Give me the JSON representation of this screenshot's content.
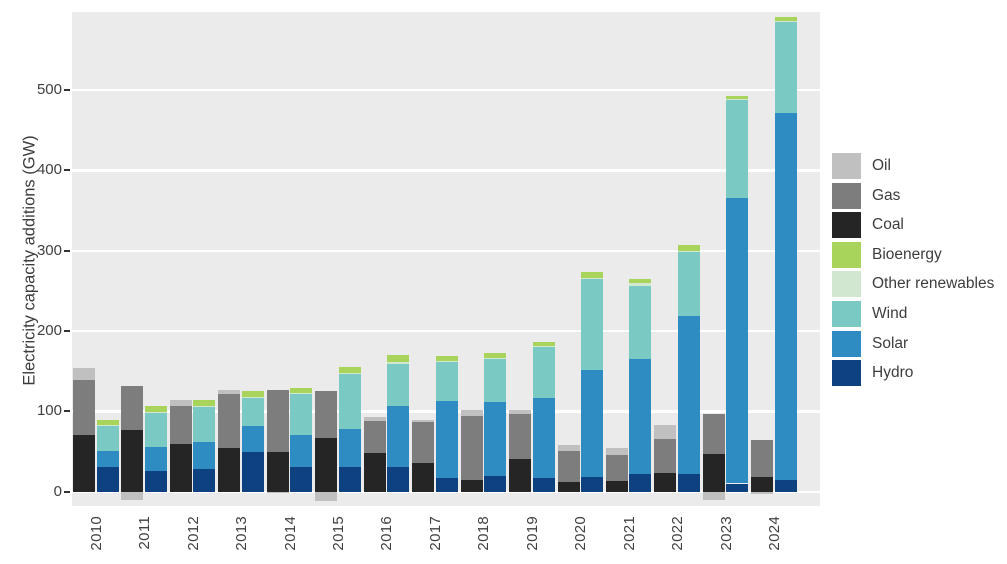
{
  "chart_data": {
    "type": "bar",
    "variant": "grouped-stacked",
    "title": "",
    "ylabel": "Electricity capacity additions (GW)",
    "xlabel": "",
    "categories": [
      "2010",
      "2011",
      "2012",
      "2013",
      "2014",
      "2015",
      "2016",
      "2017",
      "2018",
      "2019",
      "2020",
      "2021",
      "2022",
      "2023",
      "2024"
    ],
    "yticks": [
      0,
      100,
      200,
      300,
      400,
      500
    ],
    "ylim": [
      -18,
      597
    ],
    "grid": true,
    "plot_bg": "#ebebeb",
    "grid_color": "#ffffff",
    "text_color": "#404040",
    "legend_position": "right",
    "legend": [
      "Oil",
      "Gas",
      "Coal",
      "Bioenergy",
      "Other renewables",
      "Wind",
      "Solar",
      "Hydro"
    ],
    "series": [
      {
        "name": "Coal",
        "group": "fossil",
        "color": "#252525",
        "values": [
          70,
          76,
          59,
          54,
          49,
          67,
          48,
          35,
          14,
          41,
          12,
          13,
          23,
          47,
          18
        ]
      },
      {
        "name": "Gas",
        "group": "fossil",
        "color": "#7d7d7d",
        "values": [
          69,
          55,
          47,
          68,
          77,
          58,
          40,
          51,
          80,
          55,
          38,
          33,
          43,
          49,
          46
        ]
      },
      {
        "name": "Oil",
        "group": "fossil",
        "color": "#c0c0c0",
        "values": [
          15,
          -10,
          8,
          4,
          -2,
          -12,
          5,
          3,
          7,
          6,
          8,
          8,
          17,
          -10,
          -3
        ]
      },
      {
        "name": "Hydro",
        "group": "renewables",
        "color": "#0d4180",
        "values": [
          31,
          26,
          28,
          49,
          30,
          31,
          30,
          17,
          19,
          17,
          18,
          22,
          22,
          10,
          14
        ]
      },
      {
        "name": "Solar",
        "group": "renewables",
        "color": "#2e8cc3",
        "values": [
          20,
          29,
          34,
          33,
          41,
          47,
          77,
          96,
          93,
          99,
          133,
          143,
          196,
          355,
          457
        ]
      },
      {
        "name": "Wind",
        "group": "renewables",
        "color": "#7acac3",
        "values": [
          31,
          43,
          44,
          35,
          50,
          69,
          52,
          49,
          53,
          64,
          113,
          91,
          81,
          123,
          114
        ]
      },
      {
        "name": "Other renewables",
        "group": "renewables",
        "color": "#d2e7d0",
        "values": [
          1,
          1,
          1,
          1,
          2,
          1,
          2,
          1,
          1,
          1,
          2,
          3,
          1,
          1,
          1
        ]
      },
      {
        "name": "Bioenergy",
        "group": "renewables",
        "color": "#a8d45c",
        "values": [
          6,
          7,
          7,
          7,
          6,
          7,
          9,
          6,
          6,
          5,
          7,
          5,
          7,
          4,
          5
        ]
      }
    ]
  }
}
